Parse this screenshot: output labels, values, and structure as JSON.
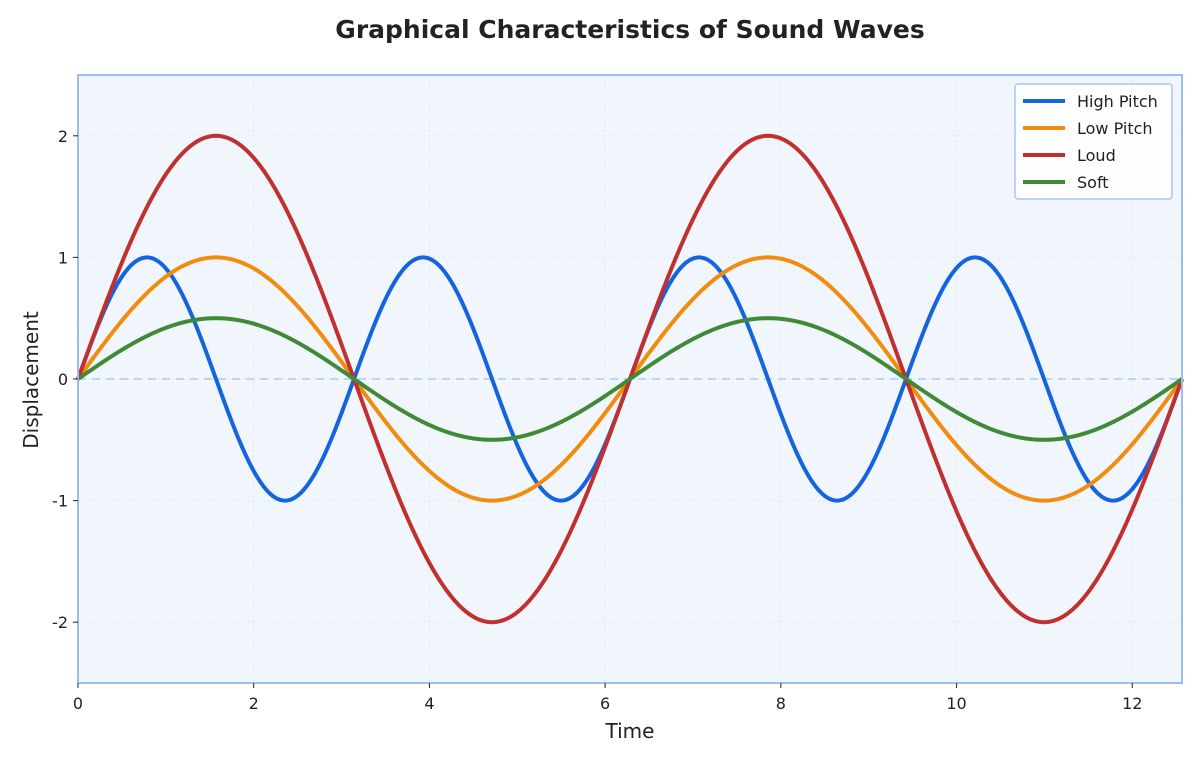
{
  "chart_data": {
    "type": "line",
    "title": "Graphical Characteristics of Sound Waves",
    "xlabel": "Time",
    "ylabel": "Displacement",
    "xlim": [
      0,
      12.566
    ],
    "ylim": [
      -2.5,
      2.5
    ],
    "xticks": [
      0,
      2,
      4,
      6,
      8,
      10,
      12
    ],
    "yticks": [
      -2,
      -1,
      0,
      1,
      2
    ],
    "grid": true,
    "legend_position": "top-right",
    "background_color": "#f1f6fc",
    "border_color": "#9bbef0",
    "zero_line_color": "#bcd3f2",
    "series": [
      {
        "name": "High Pitch",
        "color": "#1464e0",
        "amplitude": 1,
        "frequency": 2,
        "function": "sin"
      },
      {
        "name": "Low Pitch",
        "color": "#f28c0f",
        "amplitude": 1,
        "frequency": 1,
        "function": "sin"
      },
      {
        "name": "Loud",
        "color": "#c0302e",
        "amplitude": 2,
        "frequency": 1,
        "function": "sin"
      },
      {
        "name": "Soft",
        "color": "#3f8a34",
        "amplitude": 0.5,
        "frequency": 1,
        "function": "sin"
      }
    ]
  }
}
